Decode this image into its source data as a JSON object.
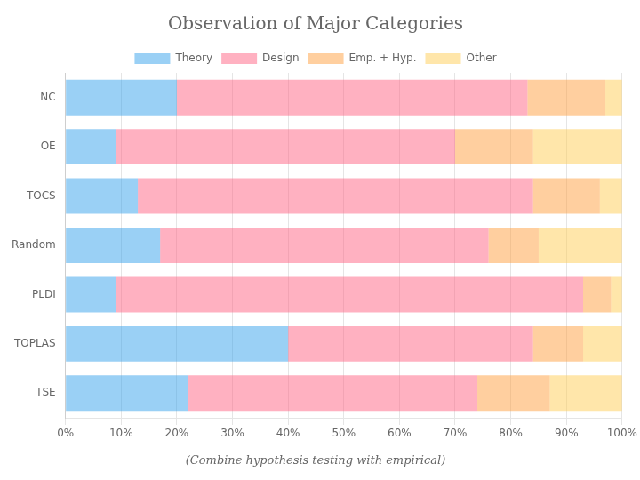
{
  "chart_data": {
    "type": "bar",
    "orientation": "horizontal",
    "stacked": true,
    "title": "Observation of Major Categories",
    "subtitle": "(Combine hypothesis testing with empirical)",
    "categories": [
      "NC",
      "OE",
      "TOCS",
      "Random",
      "PLDI",
      "TOPLAS",
      "TSE"
    ],
    "series": [
      {
        "name": "Theory",
        "values": [
          20,
          9,
          13,
          17,
          9,
          40,
          22
        ]
      },
      {
        "name": "Design",
        "values": [
          63,
          61,
          71,
          59,
          84,
          44,
          52
        ]
      },
      {
        "name": "Emp. + Hyp.",
        "values": [
          14,
          14,
          12,
          9,
          5,
          9,
          13
        ]
      },
      {
        "name": "Other",
        "values": [
          3,
          16,
          4,
          15,
          2,
          7,
          13
        ]
      }
    ],
    "xlim": [
      0,
      100
    ],
    "xticks": [
      {
        "value": 0,
        "label": "0%"
      },
      {
        "value": 10,
        "label": "10%"
      },
      {
        "value": 20,
        "label": "20%"
      },
      {
        "value": 30,
        "label": "30%"
      },
      {
        "value": 40,
        "label": "40%"
      },
      {
        "value": 50,
        "label": "50%"
      },
      {
        "value": 60,
        "label": "60%"
      },
      {
        "value": 70,
        "label": "70%"
      },
      {
        "value": 80,
        "label": "80%"
      },
      {
        "value": 90,
        "label": "90%"
      },
      {
        "value": 100,
        "label": "100%"
      }
    ],
    "grid": true,
    "legend": "top"
  }
}
